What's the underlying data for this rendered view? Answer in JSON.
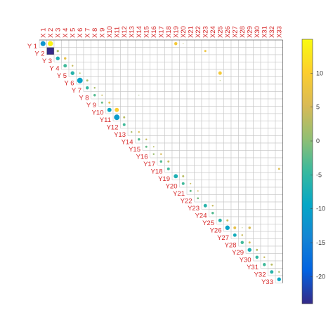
{
  "chart_data": {
    "type": "heatmap",
    "style": "triangular correlation bubble matrix",
    "x_labels": [
      "X 1",
      "X 2",
      "X 3",
      "X 4",
      "X 5",
      "X 6",
      "X 7",
      "X 8",
      "X 9",
      "X10",
      "X11",
      "X12",
      "X13",
      "X14",
      "X15",
      "X16",
      "X17",
      "X18",
      "X19",
      "X20",
      "X21",
      "X22",
      "X23",
      "X24",
      "X25",
      "X26",
      "X27",
      "X28",
      "X29",
      "X30",
      "X31",
      "X32",
      "X33"
    ],
    "y_labels": [
      "Y 1",
      "Y 2",
      "Y 3",
      "Y 4",
      "Y 5",
      "Y 6",
      "Y 7",
      "Y 8",
      "Y 9",
      "Y10",
      "Y11",
      "Y12",
      "Y13",
      "Y14",
      "Y15",
      "Y16",
      "Y17",
      "Y18",
      "Y19",
      "Y20",
      "Y21",
      "Y22",
      "Y23",
      "Y24",
      "Y25",
      "Y26",
      "Y27",
      "Y28",
      "Y29",
      "Y30",
      "Y31",
      "Y32",
      "Y33"
    ],
    "label_color": "#d62728",
    "colormap": "parula",
    "clim": [
      -24,
      15
    ],
    "colorbar_ticks": [
      10,
      5,
      0,
      -5,
      -10,
      -15,
      -20
    ],
    "cells": [
      {
        "row": 1,
        "col": 1,
        "value": -12,
        "size": 0.72
      },
      {
        "row": 1,
        "col": 2,
        "value": 14,
        "size": 0.75
      },
      {
        "row": 1,
        "col": 19,
        "value": 9,
        "size": 0.45
      },
      {
        "row": 1,
        "col": 20,
        "value": 3,
        "size": 0.12
      },
      {
        "row": 2,
        "col": 2,
        "value": -24,
        "size": 1.0
      },
      {
        "row": 2,
        "col": 3,
        "value": 2,
        "size": 0.32
      },
      {
        "row": 2,
        "col": 23,
        "value": 8,
        "size": 0.3
      },
      {
        "row": 3,
        "col": 3,
        "value": -7,
        "size": 0.55
      },
      {
        "row": 3,
        "col": 4,
        "value": 7,
        "size": 0.35
      },
      {
        "row": 4,
        "col": 4,
        "value": -4,
        "size": 0.5
      },
      {
        "row": 4,
        "col": 5,
        "value": 4,
        "size": 0.25
      },
      {
        "row": 5,
        "col": 5,
        "value": -6,
        "size": 0.55
      },
      {
        "row": 5,
        "col": 6,
        "value": 3,
        "size": 0.2
      },
      {
        "row": 5,
        "col": 25,
        "value": 9,
        "size": 0.5
      },
      {
        "row": 6,
        "col": 6,
        "value": -10,
        "size": 0.8
      },
      {
        "row": 6,
        "col": 7,
        "value": 2,
        "size": 0.3
      },
      {
        "row": 6,
        "col": 25,
        "value": 2,
        "size": 0.1
      },
      {
        "row": 7,
        "col": 7,
        "value": -5,
        "size": 0.45
      },
      {
        "row": 7,
        "col": 8,
        "value": 2,
        "size": 0.25
      },
      {
        "row": 8,
        "col": 8,
        "value": -3,
        "size": 0.35
      },
      {
        "row": 8,
        "col": 9,
        "value": 4,
        "size": 0.2
      },
      {
        "row": 8,
        "col": 14,
        "value": 1,
        "size": 0.12
      },
      {
        "row": 9,
        "col": 9,
        "value": -2,
        "size": 0.3
      },
      {
        "row": 9,
        "col": 10,
        "value": 7,
        "size": 0.3
      },
      {
        "row": 10,
        "col": 10,
        "value": -9,
        "size": 0.6
      },
      {
        "row": 10,
        "col": 11,
        "value": 10,
        "size": 0.6
      },
      {
        "row": 11,
        "col": 11,
        "value": -11,
        "size": 0.8
      },
      {
        "row": 11,
        "col": 12,
        "value": 3,
        "size": 0.3
      },
      {
        "row": 12,
        "col": 12,
        "value": -4,
        "size": 0.4
      },
      {
        "row": 13,
        "col": 13,
        "value": 2,
        "size": 0.25
      },
      {
        "row": 13,
        "col": 14,
        "value": 6,
        "size": 0.25
      },
      {
        "row": 14,
        "col": 14,
        "value": -3,
        "size": 0.35
      },
      {
        "row": 14,
        "col": 15,
        "value": 4,
        "size": 0.25
      },
      {
        "row": 15,
        "col": 15,
        "value": -2,
        "size": 0.3
      },
      {
        "row": 15,
        "col": 16,
        "value": 3,
        "size": 0.2
      },
      {
        "row": 16,
        "col": 16,
        "value": 1,
        "size": 0.25
      },
      {
        "row": 16,
        "col": 17,
        "value": 5,
        "size": 0.25
      },
      {
        "row": 17,
        "col": 17,
        "value": -3,
        "size": 0.35
      },
      {
        "row": 17,
        "col": 18,
        "value": 4,
        "size": 0.3
      },
      {
        "row": 18,
        "col": 18,
        "value": -4,
        "size": 0.4
      },
      {
        "row": 18,
        "col": 33,
        "value": 6,
        "size": 0.28
      },
      {
        "row": 19,
        "col": 19,
        "value": -7,
        "size": 0.6
      },
      {
        "row": 19,
        "col": 20,
        "value": 3,
        "size": 0.3
      },
      {
        "row": 20,
        "col": 20,
        "value": -4,
        "size": 0.4
      },
      {
        "row": 20,
        "col": 21,
        "value": 4,
        "size": 0.2
      },
      {
        "row": 21,
        "col": 21,
        "value": -2,
        "size": 0.3
      },
      {
        "row": 21,
        "col": 22,
        "value": 5,
        "size": 0.2
      },
      {
        "row": 22,
        "col": 22,
        "value": -1,
        "size": 0.28
      },
      {
        "row": 23,
        "col": 23,
        "value": -6,
        "size": 0.5
      },
      {
        "row": 23,
        "col": 24,
        "value": 4,
        "size": 0.25
      },
      {
        "row": 24,
        "col": 24,
        "value": -3,
        "size": 0.35
      },
      {
        "row": 25,
        "col": 25,
        "value": -6,
        "size": 0.5
      },
      {
        "row": 25,
        "col": 26,
        "value": 4,
        "size": 0.3
      },
      {
        "row": 26,
        "col": 26,
        "value": -10,
        "size": 0.65
      },
      {
        "row": 26,
        "col": 27,
        "value": 7,
        "size": 0.4
      },
      {
        "row": 26,
        "col": 28,
        "value": 2,
        "size": 0.1
      },
      {
        "row": 26,
        "col": 29,
        "value": 5,
        "size": 0.35
      },
      {
        "row": 27,
        "col": 27,
        "value": -8,
        "size": 0.5
      },
      {
        "row": 27,
        "col": 28,
        "value": 4,
        "size": 0.25
      },
      {
        "row": 28,
        "col": 28,
        "value": -4,
        "size": 0.45
      },
      {
        "row": 28,
        "col": 29,
        "value": 5,
        "size": 0.3
      },
      {
        "row": 29,
        "col": 29,
        "value": -7,
        "size": 0.55
      },
      {
        "row": 29,
        "col": 30,
        "value": 3,
        "size": 0.3
      },
      {
        "row": 30,
        "col": 30,
        "value": -5,
        "size": 0.45
      },
      {
        "row": 30,
        "col": 31,
        "value": 4,
        "size": 0.25
      },
      {
        "row": 31,
        "col": 31,
        "value": -4,
        "size": 0.45
      },
      {
        "row": 31,
        "col": 32,
        "value": 3,
        "size": 0.3
      },
      {
        "row": 32,
        "col": 32,
        "value": -6,
        "size": 0.5
      },
      {
        "row": 32,
        "col": 33,
        "value": 2,
        "size": 0.25
      },
      {
        "row": 33,
        "col": 33,
        "value": -9,
        "size": 0.55
      }
    ]
  }
}
